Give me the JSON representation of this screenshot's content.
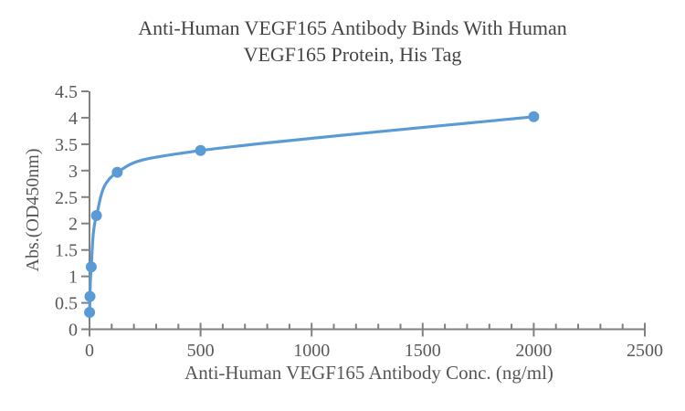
{
  "chart": {
    "title_line1": "Anti-Human VEGF165 Antibody Binds With Human",
    "title_line2": "VEGF165 Protein, His Tag",
    "xlabel": "Anti-Human VEGF165 Antibody Conc. (ng/ml)",
    "ylabel": "Abs.(OD450nm)"
  },
  "chart_data": {
    "type": "line",
    "title": "Anti-Human VEGF165 Antibody Binds With Human VEGF165 Protein, His Tag",
    "xlabel": "Anti-Human VEGF165 Antibody Conc. (ng/ml)",
    "ylabel": "Abs.(OD450nm)",
    "series": [
      {
        "name": "Anti-Human VEGF165 Antibody",
        "x": [
          0.49,
          1.95,
          7.81,
          31.25,
          125,
          500,
          2000
        ],
        "y": [
          0.32,
          0.62,
          1.18,
          2.15,
          2.97,
          3.38,
          4.02
        ]
      }
    ],
    "xlim": [
      0,
      2500
    ],
    "ylim": [
      0,
      4.5
    ],
    "x_major_tick": 500,
    "x_minor_tick": 100,
    "y_major_tick": 0.5,
    "x_tick_labels": [
      "0",
      "500",
      "1000",
      "1500",
      "2000",
      "2500"
    ],
    "y_tick_labels": [
      "0",
      "0.5",
      "1",
      "1.5",
      "2",
      "2.5",
      "3",
      "3.5",
      "4",
      "4.5"
    ],
    "grid": false,
    "legend": "none",
    "smooth": true,
    "marker": "circle"
  },
  "style": {
    "line_color": "#5b9bd5",
    "marker_color": "#5b9bd5",
    "axis_color": "#808080",
    "tick_label_color": "#595959",
    "title_color": "#444444"
  }
}
